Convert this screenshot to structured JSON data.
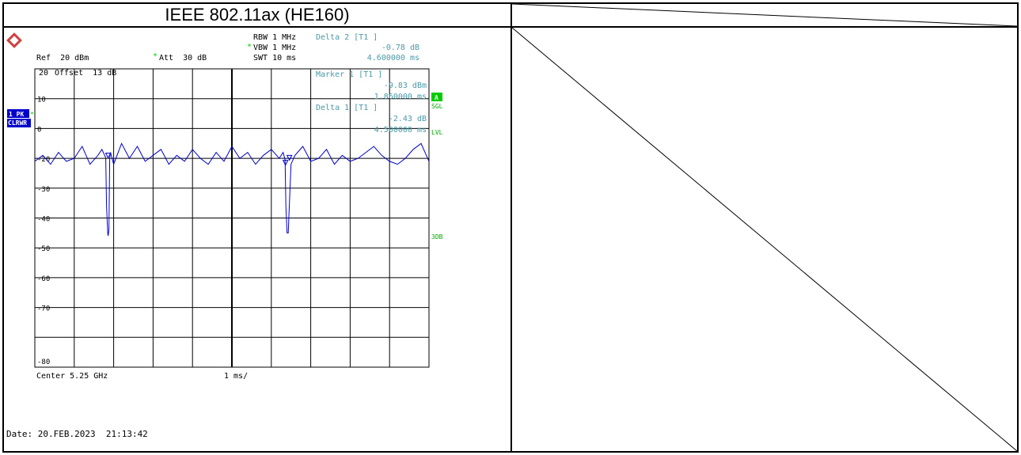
{
  "header": {
    "title": "IEEE 802.11ax (HE160)"
  },
  "analyzer": {
    "settings": {
      "rbw": "RBW 1 MHz",
      "vbw": "VBW 1 MHz",
      "swt": "SWT 10 ms",
      "ref": "Ref  20 dBm",
      "att": "Att  30 dB",
      "offset": "Offset  13 dB",
      "asterisk": "*"
    },
    "delta2": {
      "title": "Delta 2 [T1 ]",
      "value": "-0.78 dB",
      "time": "4.600000 ms"
    },
    "marker1": {
      "title": "Marker 1 [T1 ]",
      "value": "-9.83 dBm",
      "time": "1.860000 ms"
    },
    "delta1": {
      "title": "Delta 1 [T1 ]",
      "value": "-2.43 dB",
      "time": "4.500000 ms"
    },
    "side_labels": {
      "trace_label": "1 PK",
      "trace_mode": "CLRWR",
      "badge": "A",
      "sgl": "SGL",
      "lvl": "LVL",
      "threedb": "3DB"
    },
    "center": "Center 5.25 GHz",
    "span": "1 ms/",
    "date": "Date: 20.FEB.2023  21:13:42",
    "marker_labels": [
      "1",
      "D2",
      "D1"
    ]
  },
  "colors": {
    "trace": "#0000cc",
    "annotation": "#4a9aa8",
    "grid": "#000000",
    "badge_bg": "#0000cc",
    "green": "#00cc00"
  },
  "chart_data": {
    "type": "line",
    "title": "",
    "xlabel": "",
    "ylabel": "",
    "x_unit": "ms",
    "y_unit": "dBm",
    "xlim": [
      0,
      10
    ],
    "ylim": [
      -80,
      20
    ],
    "y_tick_labels": [
      "20",
      "10",
      "0",
      "-20",
      "-30",
      "-40",
      "-50",
      "-60",
      "-70",
      "-80"
    ],
    "series": [
      {
        "x": [
          0,
          0.2,
          0.4,
          0.6,
          0.8,
          1.0,
          1.2,
          1.4,
          1.6,
          1.7,
          1.8,
          1.82,
          1.85,
          1.86,
          1.88,
          1.9,
          1.92,
          2.0,
          2.2,
          2.4,
          2.6,
          2.8,
          3.0,
          3.2,
          3.4,
          3.6,
          3.8,
          4.0,
          4.2,
          4.4,
          4.6,
          4.8,
          5.0,
          5.2,
          5.4,
          5.6,
          5.8,
          6.0,
          6.2,
          6.3,
          6.35,
          6.37,
          6.4,
          6.43,
          6.45,
          6.5,
          6.6,
          6.8,
          7.0,
          7.2,
          7.4,
          7.6,
          7.8,
          8.0,
          8.2,
          8.4,
          8.6,
          8.8,
          9.0,
          9.2,
          9.4,
          9.6,
          9.8,
          10.0
        ],
        "y": [
          -11,
          -9,
          -12,
          -8,
          -11,
          -10,
          -6,
          -12,
          -9,
          -7,
          -9.8,
          -26,
          -35,
          -36,
          -34,
          -10,
          -8,
          -12,
          -5,
          -10,
          -6,
          -11,
          -9,
          -7,
          -12,
          -9,
          -11,
          -7,
          -10,
          -12,
          -8,
          -11,
          -6,
          -10,
          -8,
          -12,
          -9,
          -7,
          -10,
          -8,
          -10.5,
          -26,
          -35,
          -35,
          -28,
          -12,
          -9,
          -6,
          -11,
          -10,
          -7,
          -12,
          -9,
          -11,
          -10,
          -8,
          -6,
          -9,
          -11,
          -12,
          -10,
          -7,
          -5,
          -11
        ]
      }
    ],
    "markers": [
      {
        "name": "1",
        "x": 1.86,
        "y": -9.83
      },
      {
        "name": "D2",
        "x": 6.46,
        "y": -10.61
      },
      {
        "name": "D1",
        "x": 6.36,
        "y": -12.26
      }
    ]
  }
}
